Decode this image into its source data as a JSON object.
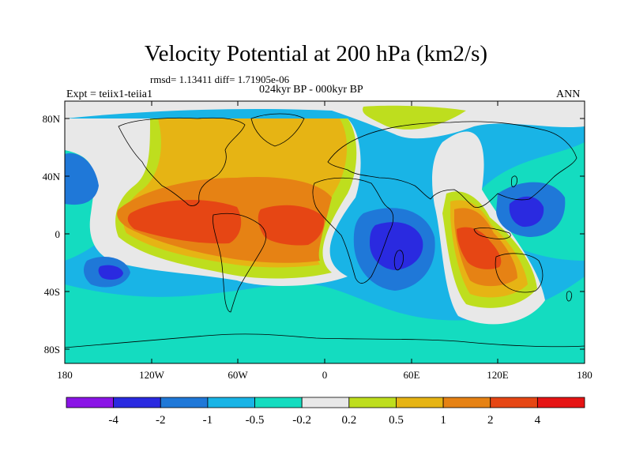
{
  "title": "Velocity Potential at 200 hPa (km2/s)",
  "stats": "rmsd= 1.13411 diff= 1.71905e-06",
  "subtitle": "024kyr BP - 000kyr BP",
  "experiment": "Expt = teiix1-teiia1",
  "season": "ANN",
  "lat_ticks": [
    "80N",
    "40N",
    "0",
    "40S",
    "80S"
  ],
  "lon_ticks": [
    "180",
    "120W",
    "60W",
    "0",
    "60E",
    "120E",
    "180"
  ],
  "colorbar": {
    "colors": [
      "#8a14e6",
      "#2a2ae0",
      "#1f78d8",
      "#19b4e6",
      "#14dcc0",
      "#e8e8e8",
      "#bede1e",
      "#e6b414",
      "#e68214",
      "#e64614",
      "#e61414"
    ],
    "labels": [
      "-4",
      "-2",
      "-1",
      "-0.5",
      "-0.2",
      "0.2",
      "0.5",
      "1",
      "2",
      "4"
    ]
  },
  "palette": {
    "cyan_bg": "#19b4e6",
    "teal": "#14dcc0",
    "blue": "#1f78d8",
    "deep_blue": "#2a2ae0",
    "white": "#e8e8e8",
    "lime": "#bede1e",
    "gold": "#e6b414",
    "orange": "#e68214",
    "red_orange": "#e64614"
  }
}
